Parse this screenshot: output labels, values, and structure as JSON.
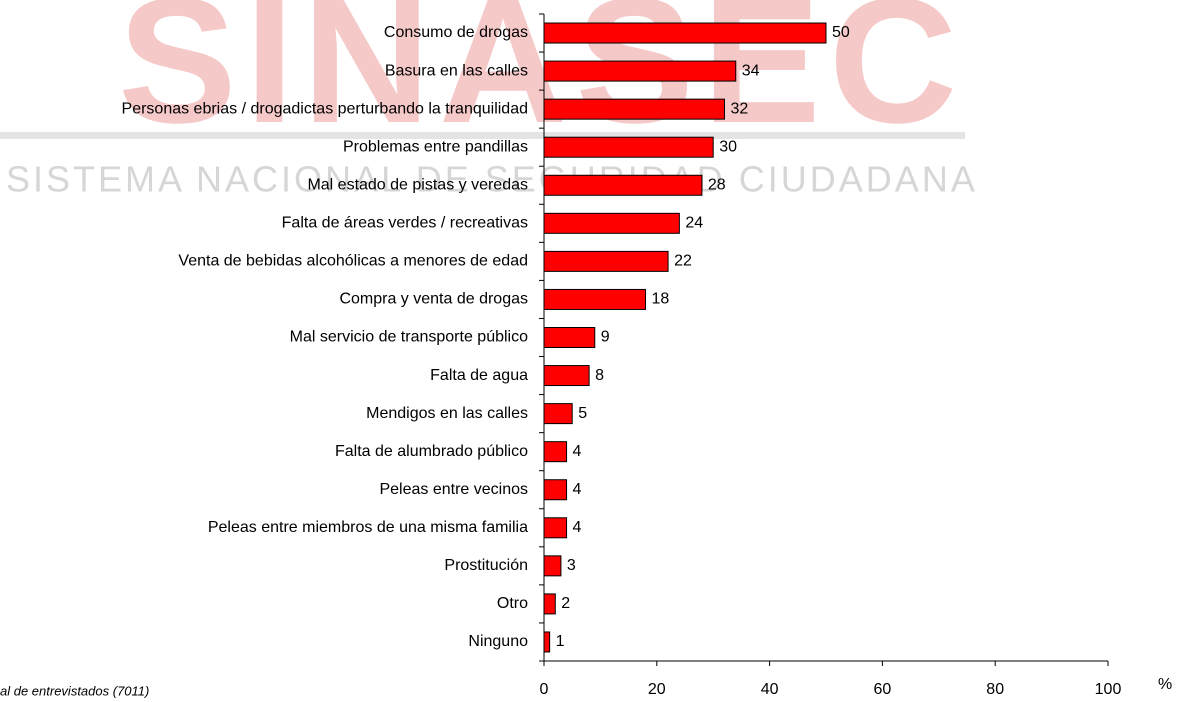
{
  "chart_data": {
    "type": "bar",
    "orientation": "horizontal",
    "watermark": "SINASEC",
    "watermark_subtitle": "SISTEMA NACIONAL DE SEGURIDAD CIUDADANA",
    "footnote": "al de entrevistados (7011)",
    "x_axis_label": "%",
    "categories": [
      "Consumo de drogas",
      "Basura en las calles",
      "Personas ebrias / drogadictas perturbando la tranquilidad",
      "Problemas entre pandillas",
      "Mal estado de pistas y veredas",
      "Falta de áreas verdes / recreativas",
      "Venta de bebidas alcohólicas a menores de edad",
      "Compra y venta de drogas",
      "Mal servicio de transporte público",
      "Falta de agua",
      "Mendigos en las calles",
      "Falta de alumbrado público",
      "Peleas entre vecinos",
      "Peleas entre miembros de una misma familia",
      "Prostitución",
      "Otro",
      "Ninguno"
    ],
    "values": [
      50,
      34,
      32,
      30,
      28,
      24,
      22,
      18,
      9,
      8,
      5,
      4,
      4,
      4,
      3,
      2,
      1
    ],
    "color": "#ff0000",
    "xlim": [
      0,
      100
    ],
    "xticks": [
      0,
      20,
      40,
      60,
      80,
      100
    ],
    "grid": false
  }
}
